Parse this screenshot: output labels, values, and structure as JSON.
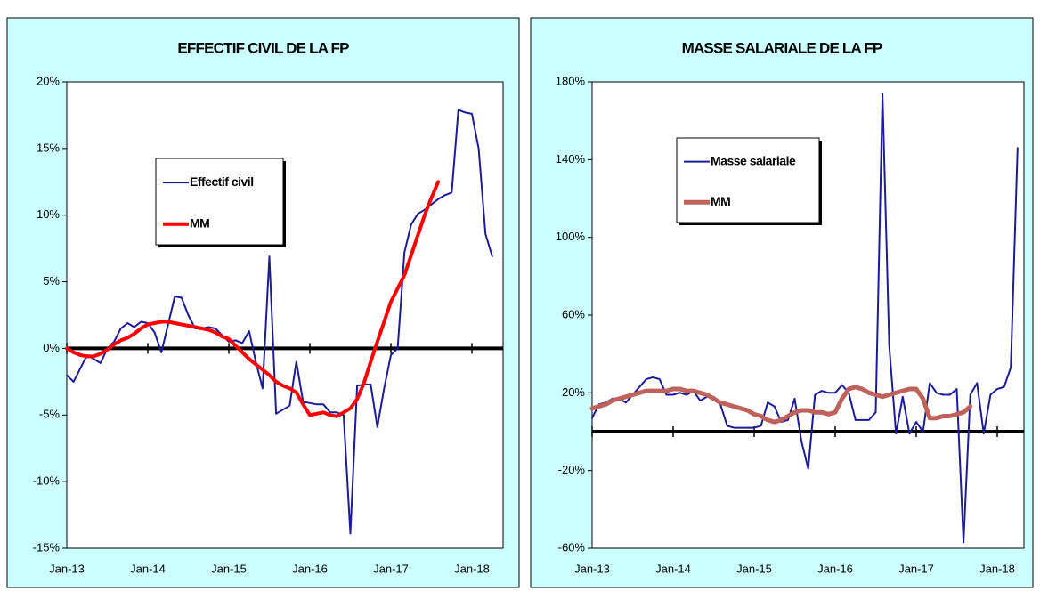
{
  "chart_data": [
    {
      "type": "line",
      "title": "EFFECTIF CIVIL DE LA FP",
      "categories": [
        "Jan-13",
        null,
        null,
        null,
        null,
        null,
        null,
        null,
        null,
        null,
        null,
        null,
        "Jan-14",
        null,
        null,
        null,
        null,
        null,
        null,
        null,
        null,
        null,
        null,
        null,
        "Jan-15",
        null,
        null,
        null,
        null,
        null,
        null,
        null,
        null,
        null,
        null,
        null,
        "Jan-16",
        null,
        null,
        null,
        null,
        null,
        null,
        null,
        null,
        null,
        null,
        null,
        "Jan-17",
        null,
        null,
        null,
        null,
        null,
        null,
        null,
        null,
        null,
        null,
        null,
        "Jan-18",
        null,
        null,
        null
      ],
      "series": [
        {
          "name": "Effectif civil",
          "color": "#1c1c96",
          "values": [
            -2,
            -2.5,
            -1.5,
            -0.5,
            -0.8,
            -1.1,
            0,
            0.5,
            1.5,
            1.9,
            1.6,
            2.0,
            1.9,
            1.2,
            -0.3,
            1.8,
            3.9,
            3.8,
            2.5,
            1.5,
            1.5,
            1.6,
            1.5,
            1.0,
            0.5,
            0.6,
            0.4,
            1.3,
            -1,
            -3,
            6.9,
            -4.9,
            -4.6,
            -4.3,
            -1,
            -4,
            -4.1,
            -4.2,
            -4.2,
            -4.8,
            -4.8,
            -5,
            -13.9,
            -2.8,
            -2.7,
            -2.7,
            -5.9,
            -3,
            -0.5,
            0,
            7.2,
            9.3,
            10.1,
            10.4,
            10.8,
            11.2,
            11.5,
            11.7,
            17.9,
            17.7,
            17.6,
            15,
            8.6,
            6.9
          ]
        },
        {
          "name": "MM",
          "color": "#ff0000",
          "values": [
            0,
            -0.3,
            -0.5,
            -0.6,
            -0.6,
            -0.4,
            -0.1,
            0.3,
            0.6,
            0.8,
            1.1,
            1.5,
            1.8,
            1.9,
            2.0,
            2.0,
            1.9,
            1.8,
            1.7,
            1.6,
            1.5,
            1.4,
            1.2,
            0.9,
            0.7,
            0.2,
            -0.3,
            -0.8,
            -1.2,
            -1.6,
            -2.0,
            -2.5,
            -2.8,
            -3.0,
            -3.3,
            -4.2,
            -5.0,
            -4.9,
            -4.8,
            -5.0,
            -5.1,
            -4.8,
            -4.5,
            -3.8,
            -2.6,
            -1.0,
            0.5,
            2.0,
            3.5,
            4.5,
            5.5,
            7.0,
            8.5,
            10.0,
            11.3,
            12.5,
            null,
            null,
            null,
            null,
            null,
            null,
            null,
            null
          ]
        }
      ],
      "ylim": [
        -15,
        20
      ],
      "yticks": [
        {
          "value": -15,
          "label": "-15%"
        },
        {
          "value": -10,
          "label": "-10%"
        },
        {
          "value": -5,
          "label": "-5%"
        },
        {
          "value": 0,
          "label": "0%"
        },
        {
          "value": 5,
          "label": "5%"
        },
        {
          "value": 10,
          "label": "10%"
        },
        {
          "value": 15,
          "label": "15%"
        },
        {
          "value": 20,
          "label": "20%"
        }
      ],
      "legend": "upper left"
    },
    {
      "type": "line",
      "title": "MASSE SALARIALE DE LA FP",
      "categories": [
        "Jan-13",
        null,
        null,
        null,
        null,
        null,
        null,
        null,
        null,
        null,
        null,
        null,
        "Jan-14",
        null,
        null,
        null,
        null,
        null,
        null,
        null,
        null,
        null,
        null,
        null,
        "Jan-15",
        null,
        null,
        null,
        null,
        null,
        null,
        null,
        null,
        null,
        null,
        null,
        "Jan-16",
        null,
        null,
        null,
        null,
        null,
        null,
        null,
        null,
        null,
        null,
        null,
        "Jan-17",
        null,
        null,
        null,
        null,
        null,
        null,
        null,
        null,
        null,
        null,
        null,
        "Jan-18",
        null,
        null,
        null
      ],
      "series": [
        {
          "name": "Masse salariale",
          "color": "#1c1c96",
          "values": [
            7,
            14,
            15,
            17,
            17,
            15,
            19,
            23,
            27,
            28,
            27,
            19,
            19,
            20,
            19,
            21,
            16,
            18,
            18,
            14,
            3,
            2,
            2,
            2,
            2,
            3,
            15,
            13,
            5,
            6,
            17,
            -5,
            -19,
            19,
            21,
            20,
            20,
            24,
            20,
            6,
            6,
            6,
            10,
            174,
            44,
            -1,
            18,
            -1,
            5,
            0,
            25,
            20,
            19,
            19,
            22,
            -57,
            19,
            25,
            -1,
            19,
            22,
            23,
            33,
            146
          ]
        },
        {
          "name": "MM",
          "color": "#c0625c",
          "values": [
            12,
            13,
            14,
            16,
            17,
            18,
            19,
            20,
            21,
            21,
            21,
            21,
            22,
            22,
            21,
            21,
            20,
            19,
            17,
            15,
            14,
            13,
            12,
            11,
            9,
            8,
            6,
            5,
            6,
            8,
            10,
            11,
            11,
            10,
            10,
            9,
            10,
            17,
            22,
            23,
            22,
            20,
            19,
            18,
            19,
            20,
            21,
            22,
            22,
            17,
            7,
            7,
            8,
            8,
            9,
            10,
            13,
            null,
            null,
            null,
            null,
            null,
            null,
            null
          ]
        }
      ],
      "ylim": [
        -60,
        180
      ],
      "yticks": [
        {
          "value": -60,
          "label": "-60%"
        },
        {
          "value": -20,
          "label": "-20%"
        },
        {
          "value": 20,
          "label": "20%"
        },
        {
          "value": 60,
          "label": "60%"
        },
        {
          "value": 100,
          "label": "100%"
        },
        {
          "value": 140,
          "label": "140%"
        },
        {
          "value": 180,
          "label": "180%"
        }
      ],
      "legend": "upper left"
    }
  ]
}
